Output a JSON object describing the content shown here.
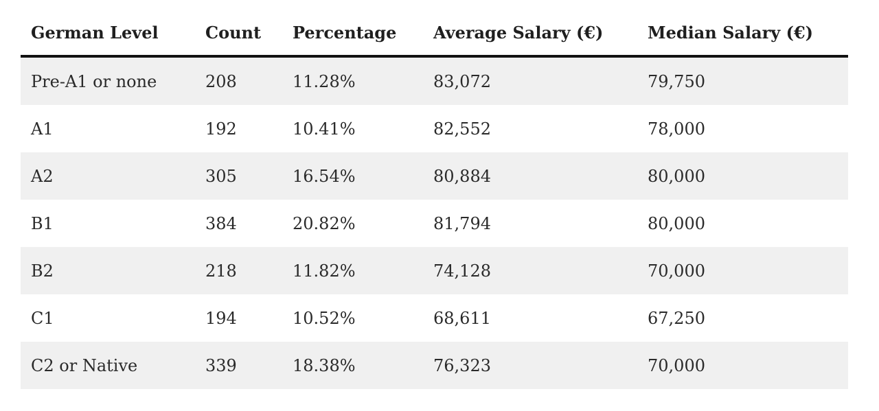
{
  "table": {
    "headers": [
      "German Level",
      "Count",
      "Percentage",
      "Average Salary (€)",
      "Median Salary (€)"
    ],
    "rows": [
      [
        "Pre-A1 or none",
        "208",
        "11.28%",
        "83,072",
        "79,750"
      ],
      [
        "A1",
        "192",
        "10.41%",
        "82,552",
        "78,000"
      ],
      [
        "A2",
        "305",
        "16.54%",
        "80,884",
        "80,000"
      ],
      [
        "B1",
        "384",
        "20.82%",
        "81,794",
        "80,000"
      ],
      [
        "B2",
        "218",
        "11.82%",
        "74,128",
        "70,000"
      ],
      [
        "C1",
        "194",
        "10.52%",
        "68,611",
        "67,250"
      ],
      [
        "C2 or Native",
        "339",
        "18.38%",
        "76,323",
        "70,000"
      ]
    ]
  }
}
